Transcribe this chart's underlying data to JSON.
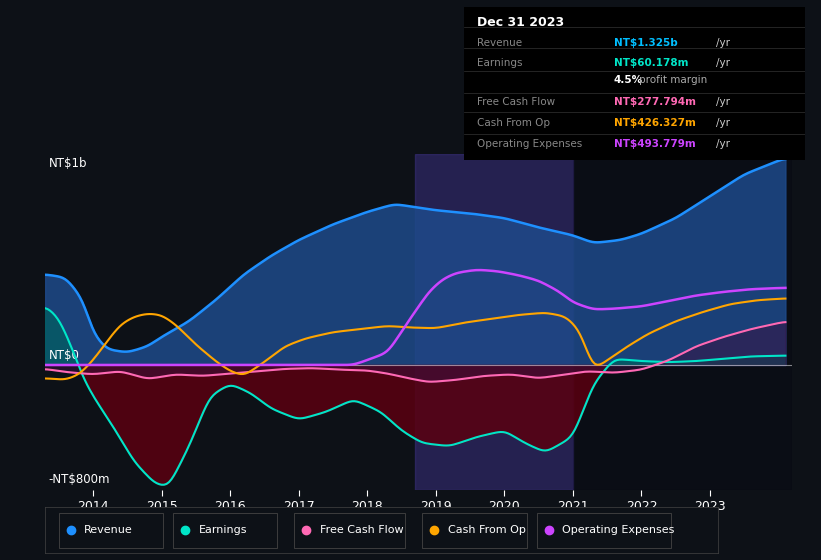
{
  "bg_color": "#0d1117",
  "plot_bg_color": "#0d1117",
  "title_box_bg": "#000000",
  "title_text": "Dec 31 2023",
  "info_rows": [
    {
      "label": "Revenue",
      "value": "NT$1.325b /yr",
      "value_color": "#00bfff"
    },
    {
      "label": "Earnings",
      "value": "NT$60.178m /yr",
      "value_color": "#00e5c8"
    },
    {
      "label": "",
      "value": "4.5% profit margin",
      "value_color": "#cccccc"
    },
    {
      "label": "Free Cash Flow",
      "value": "NT$277.794m /yr",
      "value_color": "#ff69b4"
    },
    {
      "label": "Cash From Op",
      "value": "NT$426.327m /yr",
      "value_color": "#ffa500"
    },
    {
      "label": "Operating Expenses",
      "value": "NT$493.779m /yr",
      "value_color": "#cc44ff"
    }
  ],
  "ylabel_top": "NT$1b",
  "ylabel_zero": "NT$0",
  "ylabel_bottom": "-NT$800m",
  "xlabel_years": [
    2014,
    2015,
    2016,
    2017,
    2018,
    2019,
    2020,
    2021,
    2022,
    2023
  ],
  "legend_items": [
    {
      "label": "Revenue",
      "color": "#1e90ff"
    },
    {
      "label": "Earnings",
      "color": "#00e5c8"
    },
    {
      "label": "Free Cash Flow",
      "color": "#ff69b4"
    },
    {
      "label": "Cash From Op",
      "color": "#ffa500"
    },
    {
      "label": "Operating Expenses",
      "color": "#cc44ff"
    }
  ],
  "highlight_x_start": 2018.7,
  "highlight_x_end": 2021.0,
  "x_min": 2013.3,
  "x_max": 2024.2,
  "y_min": -800,
  "y_max": 1350,
  "revenue_color": "#1e90ff",
  "earnings_color": "#00e5c8",
  "fcf_color": "#ff69b4",
  "cashop_color": "#ffa500",
  "opex_color": "#cc44ff",
  "revenue_fill_color": "#1e4a8a",
  "earnings_fill_pos_color": "#006060",
  "earnings_fill_neg_color": "#5a0010",
  "highlight_fill_color": "#3a3080"
}
